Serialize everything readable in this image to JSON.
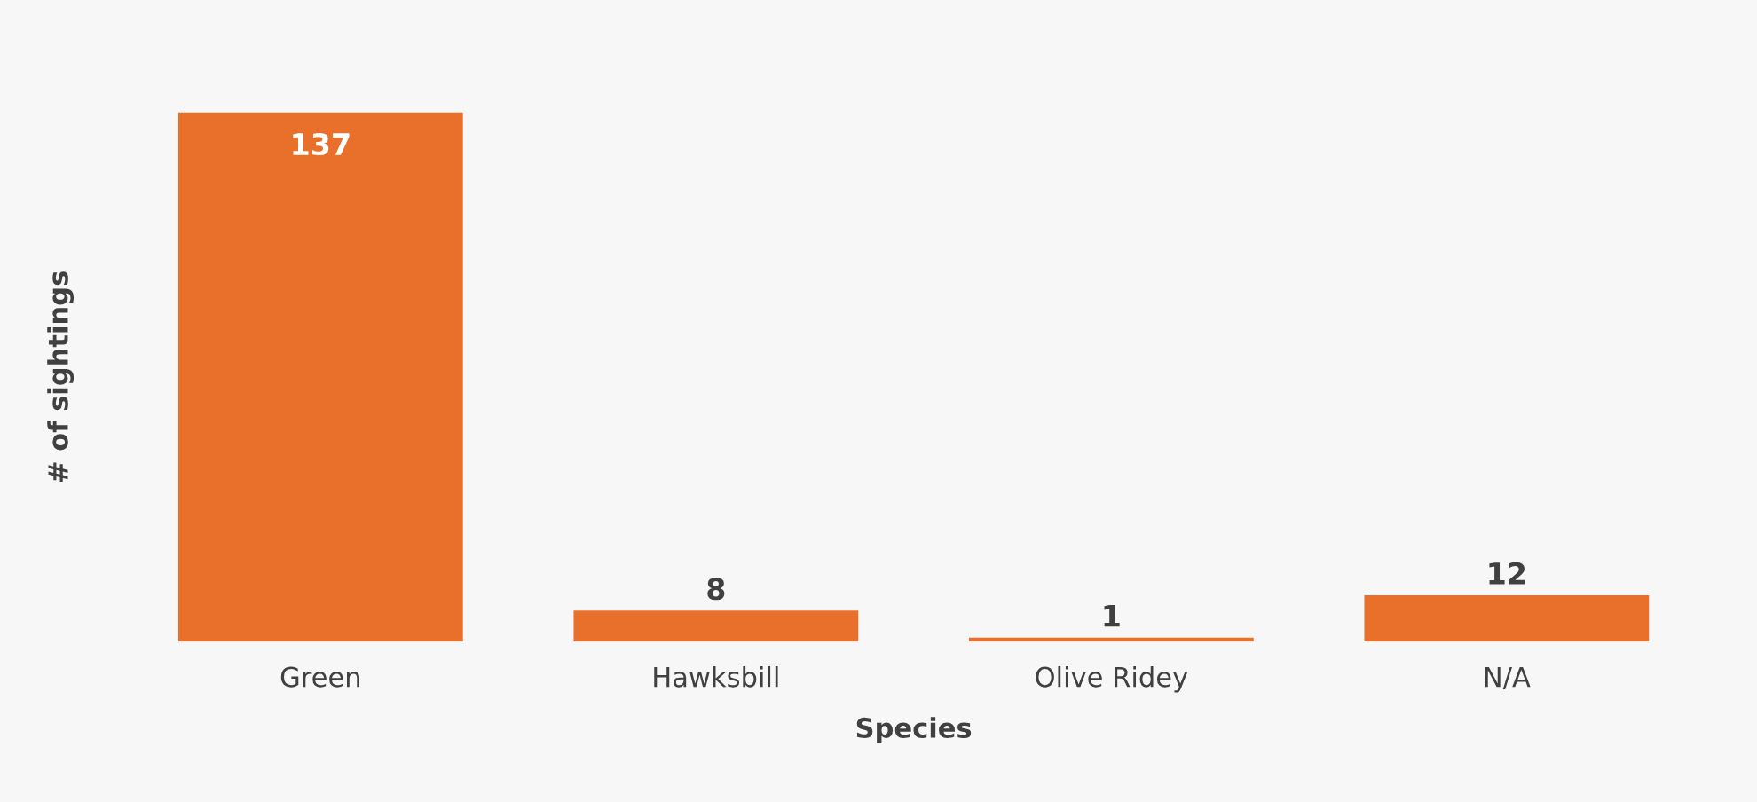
{
  "chart_data": {
    "type": "bar",
    "xlabel": "Species",
    "ylabel": "# of sightings",
    "categories": [
      "Green",
      "Hawksbill",
      "Olive Ridey",
      "N/A"
    ],
    "values": [
      137,
      8,
      1,
      12
    ],
    "color": "#e8702a",
    "data_labels": true,
    "grid": false
  }
}
